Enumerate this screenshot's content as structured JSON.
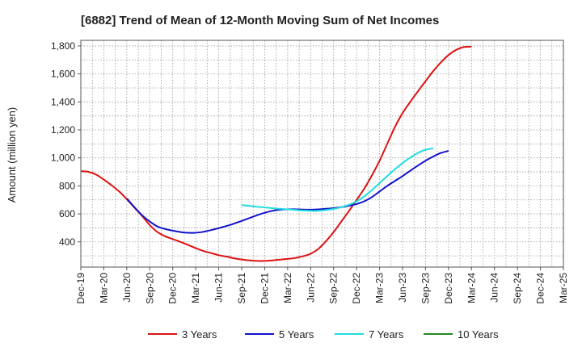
{
  "chart_data": {
    "type": "line",
    "title": "[6882]  Trend of Mean of 12-Month Moving Sum of Net Incomes",
    "ylabel": "Amount (million yen)",
    "xlabel": "",
    "ylim": [
      220,
      1840
    ],
    "yticks": [
      400,
      600,
      800,
      1000,
      1200,
      1400,
      1600,
      1800
    ],
    "ytick_labels": [
      "400",
      "600",
      "800",
      "1,000",
      "1,200",
      "1,400",
      "1,600",
      "1,800"
    ],
    "xtick_labels": [
      "Dec-19",
      "Mar-20",
      "Jun-20",
      "Sep-20",
      "Dec-20",
      "Mar-21",
      "Jun-21",
      "Sep-21",
      "Dec-21",
      "Mar-22",
      "Jun-22",
      "Sep-22",
      "Dec-22",
      "Mar-23",
      "Jun-23",
      "Sep-23",
      "Dec-23",
      "Mar-24",
      "Jun-24",
      "Sep-24",
      "Dec-24",
      "Mar-25"
    ],
    "grid": true,
    "legend_position": "bottom",
    "series": [
      {
        "name": "3 Years",
        "color": "#dd1111",
        "points": [
          [
            0,
            905
          ],
          [
            1,
            900
          ],
          [
            2,
            880
          ],
          [
            3,
            845
          ],
          [
            4,
            805
          ],
          [
            5,
            760
          ],
          [
            6,
            705
          ],
          [
            7,
            645
          ],
          [
            8,
            585
          ],
          [
            9,
            520
          ],
          [
            10,
            470
          ],
          [
            11,
            440
          ],
          [
            12,
            420
          ],
          [
            13,
            400
          ],
          [
            14,
            378
          ],
          [
            15,
            355
          ],
          [
            16,
            335
          ],
          [
            17,
            320
          ],
          [
            18,
            305
          ],
          [
            19,
            295
          ],
          [
            20,
            283
          ],
          [
            21,
            274
          ],
          [
            22,
            267
          ],
          [
            23,
            264
          ],
          [
            24,
            264
          ],
          [
            25,
            268
          ],
          [
            26,
            273
          ],
          [
            27,
            278
          ],
          [
            28,
            285
          ],
          [
            29,
            297
          ],
          [
            30,
            315
          ],
          [
            31,
            350
          ],
          [
            32,
            405
          ],
          [
            33,
            470
          ],
          [
            34,
            545
          ],
          [
            35,
            620
          ],
          [
            36,
            700
          ],
          [
            37,
            780
          ],
          [
            38,
            875
          ],
          [
            39,
            980
          ],
          [
            40,
            1100
          ],
          [
            41,
            1220
          ],
          [
            42,
            1320
          ],
          [
            43,
            1400
          ],
          [
            44,
            1475
          ],
          [
            45,
            1548
          ],
          [
            46,
            1620
          ],
          [
            47,
            1682
          ],
          [
            48,
            1735
          ],
          [
            49,
            1772
          ],
          [
            50,
            1792
          ],
          [
            51,
            1795
          ]
        ]
      },
      {
        "name": "5 Years",
        "color": "#1111cc",
        "points": [
          [
            6,
            710
          ],
          [
            7,
            648
          ],
          [
            8,
            590
          ],
          [
            9,
            545
          ],
          [
            10,
            510
          ],
          [
            11,
            492
          ],
          [
            12,
            480
          ],
          [
            13,
            470
          ],
          [
            14,
            465
          ],
          [
            15,
            465
          ],
          [
            16,
            472
          ],
          [
            17,
            484
          ],
          [
            18,
            498
          ],
          [
            19,
            513
          ],
          [
            20,
            530
          ],
          [
            21,
            550
          ],
          [
            22,
            570
          ],
          [
            23,
            590
          ],
          [
            24,
            608
          ],
          [
            25,
            622
          ],
          [
            26,
            630
          ],
          [
            27,
            633
          ],
          [
            28,
            633
          ],
          [
            29,
            631
          ],
          [
            30,
            630
          ],
          [
            31,
            632
          ],
          [
            32,
            636
          ],
          [
            33,
            641
          ],
          [
            34,
            648
          ],
          [
            35,
            658
          ],
          [
            36,
            670
          ],
          [
            37,
            690
          ],
          [
            38,
            720
          ],
          [
            39,
            760
          ],
          [
            40,
            800
          ],
          [
            41,
            835
          ],
          [
            42,
            870
          ],
          [
            43,
            908
          ],
          [
            44,
            945
          ],
          [
            45,
            980
          ],
          [
            46,
            1010
          ],
          [
            47,
            1035
          ],
          [
            48,
            1050
          ]
        ]
      },
      {
        "name": "7 Years",
        "color": "#22dddd",
        "points": [
          [
            21,
            663
          ],
          [
            22,
            657
          ],
          [
            23,
            651
          ],
          [
            24,
            646
          ],
          [
            25,
            641
          ],
          [
            26,
            636
          ],
          [
            27,
            632
          ],
          [
            28,
            628
          ],
          [
            29,
            624
          ],
          [
            30,
            622
          ],
          [
            31,
            622
          ],
          [
            32,
            627
          ],
          [
            33,
            635
          ],
          [
            34,
            648
          ],
          [
            35,
            665
          ],
          [
            36,
            690
          ],
          [
            37,
            725
          ],
          [
            38,
            770
          ],
          [
            39,
            820
          ],
          [
            40,
            870
          ],
          [
            41,
            918
          ],
          [
            42,
            963
          ],
          [
            43,
            1002
          ],
          [
            44,
            1035
          ],
          [
            45,
            1058
          ],
          [
            46,
            1068
          ]
        ]
      },
      {
        "name": "10 Years",
        "color": "#228822",
        "points": []
      }
    ]
  }
}
